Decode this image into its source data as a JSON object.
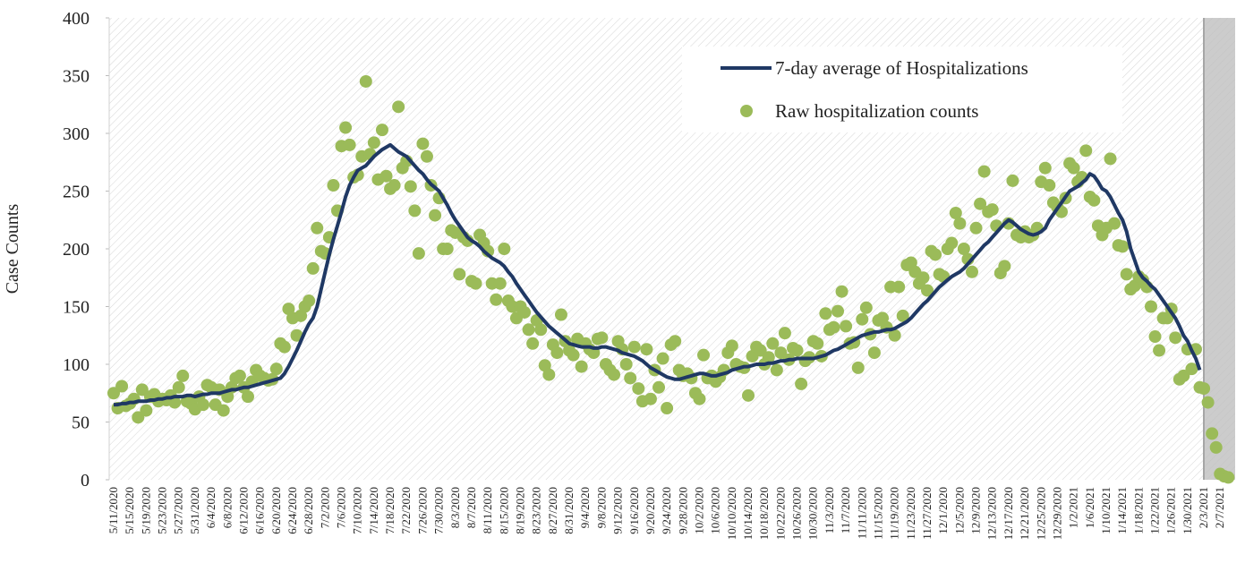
{
  "chart_data": {
    "type": "line",
    "y_label": "Case Counts",
    "categories": [
      "5/11/2020",
      null,
      null,
      null,
      "5/15/2020",
      null,
      null,
      null,
      "5/19/2020",
      null,
      null,
      null,
      "5/23/2020",
      null,
      null,
      null,
      "5/27/2020",
      null,
      null,
      null,
      "5/31/2020",
      null,
      null,
      null,
      "6/4/2020",
      null,
      null,
      null,
      "6/8/2020",
      null,
      null,
      null,
      "6/12/2020",
      null,
      null,
      null,
      "6/16/2020",
      null,
      null,
      null,
      "6/20/2020",
      null,
      null,
      null,
      "6/24/2020",
      null,
      null,
      null,
      "6/28/2020",
      null,
      null,
      null,
      "7/2/2020",
      null,
      null,
      null,
      "7/6/2020",
      null,
      null,
      null,
      "7/10/2020",
      null,
      null,
      null,
      "7/14/2020",
      null,
      null,
      null,
      "7/18/2020",
      null,
      null,
      null,
      "7/22/2020",
      null,
      null,
      null,
      "7/26/2020",
      null,
      null,
      null,
      "7/30/2020",
      null,
      null,
      null,
      "8/3/2020",
      null,
      null,
      null,
      "8/7/2020",
      null,
      null,
      null,
      "8/11/2020",
      null,
      null,
      null,
      "8/15/2020",
      null,
      null,
      null,
      "8/19/2020",
      null,
      null,
      null,
      "8/23/2020",
      null,
      null,
      null,
      "8/27/2020",
      null,
      null,
      null,
      "8/31/2020",
      null,
      null,
      null,
      "9/4/2020",
      null,
      null,
      null,
      "9/8/2020",
      null,
      null,
      null,
      "9/12/2020",
      null,
      null,
      null,
      "9/16/2020",
      null,
      null,
      null,
      "9/20/2020",
      null,
      null,
      null,
      "9/24/2020",
      null,
      null,
      null,
      "9/28/2020",
      null,
      null,
      null,
      "10/2/2020",
      null,
      null,
      null,
      "10/6/2020",
      null,
      null,
      null,
      "10/10/2020",
      null,
      null,
      null,
      "10/14/2020",
      null,
      null,
      null,
      "10/18/2020",
      null,
      null,
      null,
      "10/22/2020",
      null,
      null,
      null,
      "10/26/2020",
      null,
      null,
      null,
      "10/30/2020",
      null,
      null,
      null,
      "11/3/2020",
      null,
      null,
      null,
      "11/7/2020",
      null,
      null,
      null,
      "11/11/2020",
      null,
      null,
      null,
      "11/15/2020",
      null,
      null,
      null,
      "11/19/2020",
      null,
      null,
      null,
      "11/23/2020",
      null,
      null,
      null,
      "11/27/2020",
      null,
      null,
      null,
      "12/1/2020",
      null,
      null,
      null,
      "12/5/2020",
      null,
      null,
      null,
      "12/9/2020",
      null,
      null,
      null,
      "12/13/2020",
      null,
      null,
      null,
      "12/17/2020",
      null,
      null,
      null,
      "12/21/2020",
      null,
      null,
      null,
      "12/25/2020",
      null,
      null,
      null,
      "12/29/2020",
      null,
      null,
      null,
      "1/2/2021",
      null,
      null,
      null,
      "1/6/2021",
      null,
      null,
      null,
      "1/10/2021",
      null,
      null,
      null,
      "1/14/2021",
      null,
      null,
      null,
      "1/18/2021",
      null,
      null,
      null,
      "1/22/2021",
      null,
      null,
      null,
      "1/26/2021",
      null,
      null,
      null,
      "1/30/2021",
      null,
      null,
      null,
      "2/3/2021",
      null,
      null,
      null,
      "2/7/2021",
      null,
      null
    ],
    "series": [
      {
        "name": "7-day average of Hospitalizations",
        "type": "line",
        "color": "#1f3864",
        "values": [
          65,
          65,
          66,
          66,
          67,
          67,
          68,
          68,
          68,
          69,
          69,
          70,
          70,
          71,
          71,
          72,
          72,
          72,
          73,
          73,
          72,
          73,
          74,
          74,
          75,
          75,
          75,
          76,
          77,
          78,
          78,
          79,
          80,
          80,
          81,
          82,
          83,
          84,
          85,
          86,
          87,
          88,
          92,
          98,
          105,
          112,
          120,
          128,
          135,
          140,
          150,
          165,
          180,
          195,
          208,
          220,
          232,
          245,
          255,
          262,
          268,
          270,
          272,
          276,
          280,
          283,
          286,
          288,
          290,
          287,
          284,
          282,
          280,
          276,
          272,
          268,
          265,
          260,
          256,
          253,
          250,
          244,
          238,
          231,
          225,
          220,
          215,
          210,
          207,
          205,
          202,
          198,
          195,
          192,
          190,
          188,
          185,
          180,
          176,
          170,
          165,
          160,
          155,
          150,
          145,
          141,
          137,
          133,
          130,
          127,
          124,
          121,
          118,
          117,
          116,
          115,
          115,
          115,
          114,
          114,
          115,
          115,
          114,
          113,
          112,
          110,
          109,
          108,
          107,
          105,
          103,
          100,
          97,
          95,
          93,
          91,
          89,
          88,
          87,
          87,
          88,
          89,
          90,
          91,
          92,
          92,
          91,
          90,
          90,
          91,
          92,
          93,
          95,
          96,
          97,
          98,
          98,
          99,
          100,
          100,
          100,
          101,
          101,
          102,
          103,
          103,
          104,
          104,
          105,
          105,
          105,
          105,
          105,
          106,
          107,
          108,
          110,
          112,
          113,
          115,
          117,
          119,
          121,
          123,
          125,
          126,
          127,
          128,
          128,
          129,
          130,
          130,
          131,
          133,
          135,
          137,
          140,
          144,
          148,
          152,
          155,
          159,
          163,
          167,
          170,
          173,
          176,
          178,
          180,
          183,
          187,
          191,
          195,
          199,
          203,
          206,
          210,
          214,
          218,
          222,
          225,
          223,
          220,
          217,
          215,
          213,
          212,
          213,
          215,
          218,
          225,
          230,
          235,
          240,
          245,
          250,
          252,
          254,
          257,
          260,
          265,
          263,
          258,
          252,
          250,
          245,
          238,
          231,
          225,
          215,
          200,
          190,
          180,
          175,
          172,
          168,
          165,
          160,
          155,
          150,
          145,
          140,
          133,
          125,
          120,
          112,
          105,
          95,
          null,
          null,
          null,
          null,
          null,
          null,
          null
        ]
      },
      {
        "name": "Raw hospitalization counts",
        "type": "scatter",
        "color": "#9bbb59",
        "values": [
          75,
          62,
          81,
          64,
          66,
          70,
          54,
          78,
          60,
          72,
          74,
          68,
          70,
          69,
          73,
          67,
          80,
          90,
          68,
          66,
          61,
          72,
          65,
          82,
          80,
          65,
          78,
          60,
          72,
          80,
          88,
          90,
          80,
          72,
          85,
          95,
          90,
          88,
          86,
          87,
          96,
          118,
          115,
          148,
          140,
          125,
          142,
          150,
          155,
          183,
          218,
          198,
          196,
          210,
          255,
          233,
          289,
          305,
          290,
          262,
          264,
          280,
          345,
          282,
          292,
          260,
          303,
          263,
          252,
          255,
          323,
          270,
          276,
          254,
          233,
          196,
          291,
          280,
          255,
          229,
          244,
          200,
          200,
          216,
          214,
          178,
          210,
          207,
          172,
          170,
          212,
          205,
          198,
          170,
          156,
          170,
          200,
          155,
          150,
          140,
          150,
          145,
          130,
          118,
          138,
          130,
          99,
          91,
          117,
          110,
          143,
          120,
          112,
          108,
          122,
          98,
          118,
          113,
          110,
          122,
          123,
          100,
          95,
          91,
          120,
          113,
          100,
          88,
          115,
          79,
          68,
          113,
          70,
          95,
          80,
          105,
          62,
          117,
          120,
          95,
          90,
          92,
          88,
          75,
          70,
          108,
          88,
          90,
          85,
          89,
          95,
          110,
          116,
          100,
          98,
          97,
          73,
          107,
          115,
          112,
          100,
          106,
          118,
          95,
          110,
          127,
          104,
          114,
          112,
          83,
          103,
          106,
          120,
          118,
          107,
          144,
          130,
          132,
          146,
          163,
          133,
          118,
          119,
          97,
          139,
          149,
          126,
          110,
          138,
          140,
          132,
          167,
          125,
          167,
          142,
          186,
          188,
          180,
          170,
          175,
          164,
          198,
          195,
          178,
          176,
          200,
          205,
          231,
          222,
          200,
          191,
          180,
          218,
          239,
          267,
          232,
          234,
          220,
          179,
          185,
          222,
          259,
          212,
          210,
          215,
          210,
          212,
          218,
          258,
          270,
          255,
          240,
          236,
          232,
          244,
          274,
          270,
          258,
          262,
          285,
          245,
          242,
          220,
          212,
          218,
          278,
          222,
          203,
          202,
          178,
          165,
          168,
          176,
          173,
          167,
          150,
          124,
          112,
          140,
          140,
          148,
          123,
          87,
          90,
          113,
          96,
          113,
          80,
          79,
          67,
          40,
          28,
          5,
          3,
          2
        ]
      }
    ],
    "ylim": [
      0,
      400
    ],
    "yticks": [
      0,
      50,
      100,
      150,
      200,
      250,
      300,
      350,
      400
    ],
    "legend": "upper right"
  }
}
